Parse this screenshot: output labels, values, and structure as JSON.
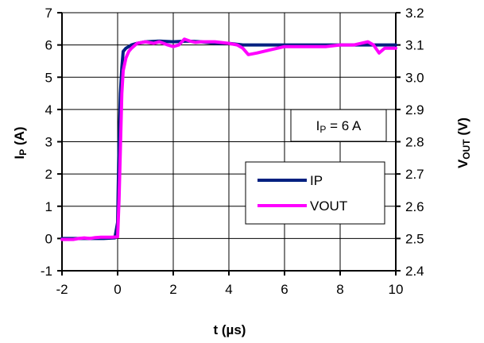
{
  "chart_data": {
    "type": "line",
    "xlabel": "t (µs)",
    "ylabel_main": "I",
    "ylabel_sub": "P",
    "ylabel_unit": " (A)",
    "y2label_main": "V",
    "y2label_sub": "OUT",
    "y2label_unit": " (V)",
    "xlim": [
      -2,
      10
    ],
    "ylim": [
      -1,
      7
    ],
    "y2lim": [
      2.4,
      3.2
    ],
    "x_ticks": [
      "-2",
      "0",
      "2",
      "4",
      "6",
      "8",
      "10"
    ],
    "y_ticks": [
      "-1",
      "0",
      "1",
      "2",
      "3",
      "4",
      "5",
      "6",
      "7"
    ],
    "y2_ticks": [
      "2.4",
      "2.5",
      "2.6",
      "2.7",
      "2.8",
      "2.9",
      "3.0",
      "3.1",
      "3.2"
    ],
    "grid": true,
    "legend_position": "bottom-right",
    "annotation": {
      "main": "I",
      "sub": "P",
      "rest": " = 6 A"
    },
    "series": [
      {
        "name": "IP",
        "axis": "left",
        "color": "#002080",
        "x": [
          -2,
          -1.5,
          -1,
          -0.5,
          -0.1,
          0,
          0.05,
          0.1,
          0.15,
          0.2,
          0.3,
          0.4,
          0.5,
          0.7,
          1.0,
          1.5,
          2.0,
          2.5,
          3.0,
          3.5,
          4.0,
          4.5,
          5.0,
          6.0,
          7.0,
          8.0,
          9.0,
          9.5,
          10
        ],
        "y": [
          0,
          0,
          0,
          0,
          0.02,
          0.5,
          3.0,
          4.5,
          5.3,
          5.8,
          5.9,
          5.95,
          6.0,
          6.05,
          6.1,
          6.12,
          6.1,
          6.12,
          6.1,
          6.05,
          6.05,
          6.0,
          6.0,
          6.0,
          6.0,
          6.0,
          6.0,
          6.0,
          6.0
        ]
      },
      {
        "name": "VOUT",
        "axis": "right",
        "color": "#ff00ff",
        "x": [
          -2,
          -1.6,
          -1.4,
          -1.2,
          -1.0,
          -0.8,
          -0.6,
          -0.4,
          -0.2,
          0.0,
          0.05,
          0.1,
          0.15,
          0.2,
          0.3,
          0.4,
          0.5,
          0.7,
          1.0,
          1.3,
          1.5,
          1.8,
          2.0,
          2.2,
          2.4,
          2.6,
          2.8,
          3.0,
          3.5,
          4.0,
          4.3,
          4.5,
          4.7,
          5.0,
          5.5,
          6.0,
          6.5,
          7.0,
          7.5,
          8.0,
          8.5,
          9.0,
          9.2,
          9.4,
          9.6,
          10.0
        ],
        "y": [
          2.497,
          2.497,
          2.5,
          2.502,
          2.5,
          2.503,
          2.504,
          2.504,
          2.504,
          2.505,
          2.62,
          2.78,
          2.95,
          3.02,
          3.06,
          3.08,
          3.09,
          3.105,
          3.11,
          3.105,
          3.11,
          3.1,
          3.095,
          3.1,
          3.118,
          3.112,
          3.108,
          3.11,
          3.11,
          3.105,
          3.1,
          3.09,
          3.07,
          3.075,
          3.085,
          3.095,
          3.095,
          3.095,
          3.095,
          3.1,
          3.1,
          3.11,
          3.1,
          3.075,
          3.09,
          3.09
        ]
      }
    ]
  }
}
